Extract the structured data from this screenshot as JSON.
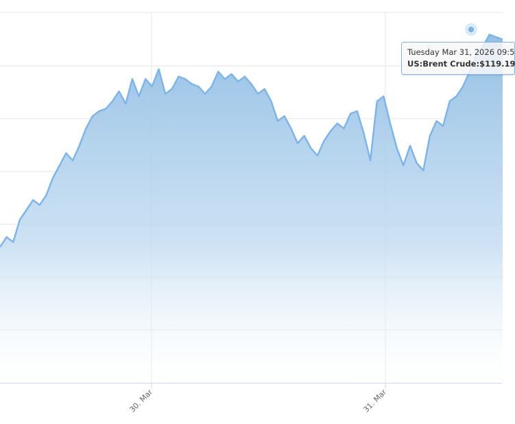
{
  "chart_data": {
    "type": "area",
    "title": "",
    "xlabel": "",
    "ylabel": "",
    "x_tick_labels": [
      "30. Mar",
      "31. Mar"
    ],
    "series": [
      {
        "name": "US:Brent Crude",
        "color": "#7cb5ec",
        "values": [
          110.5,
          110.9,
          110.7,
          111.6,
          112.0,
          112.4,
          112.2,
          112.6,
          113.3,
          113.8,
          114.3,
          114.0,
          114.6,
          115.3,
          115.8,
          116.0,
          116.1,
          116.4,
          116.8,
          116.3,
          117.3,
          116.6,
          117.3,
          117.0,
          117.7,
          116.7,
          116.9,
          117.4,
          117.3,
          117.1,
          117.0,
          116.7,
          117.0,
          117.6,
          117.3,
          117.5,
          117.2,
          117.4,
          117.1,
          116.7,
          116.9,
          116.4,
          115.6,
          115.8,
          115.3,
          114.7,
          115.0,
          114.5,
          114.2,
          114.8,
          115.2,
          115.5,
          115.3,
          115.9,
          116.0,
          115.1,
          114.0,
          116.4,
          116.6,
          115.5,
          114.5,
          113.8,
          114.6,
          113.9,
          113.6,
          115.0,
          115.6,
          115.4,
          116.4,
          116.6,
          117.0,
          117.6,
          118.3,
          118.6,
          119.1,
          119.0,
          118.9
        ]
      }
    ],
    "ylim": [
      105,
      120
    ],
    "grid": true,
    "legend": "none",
    "tooltip": {
      "date": "Tuesday Mar 31, 2026 09:5",
      "series_label": "US:Brent Crude:",
      "value": "$119.19"
    }
  }
}
